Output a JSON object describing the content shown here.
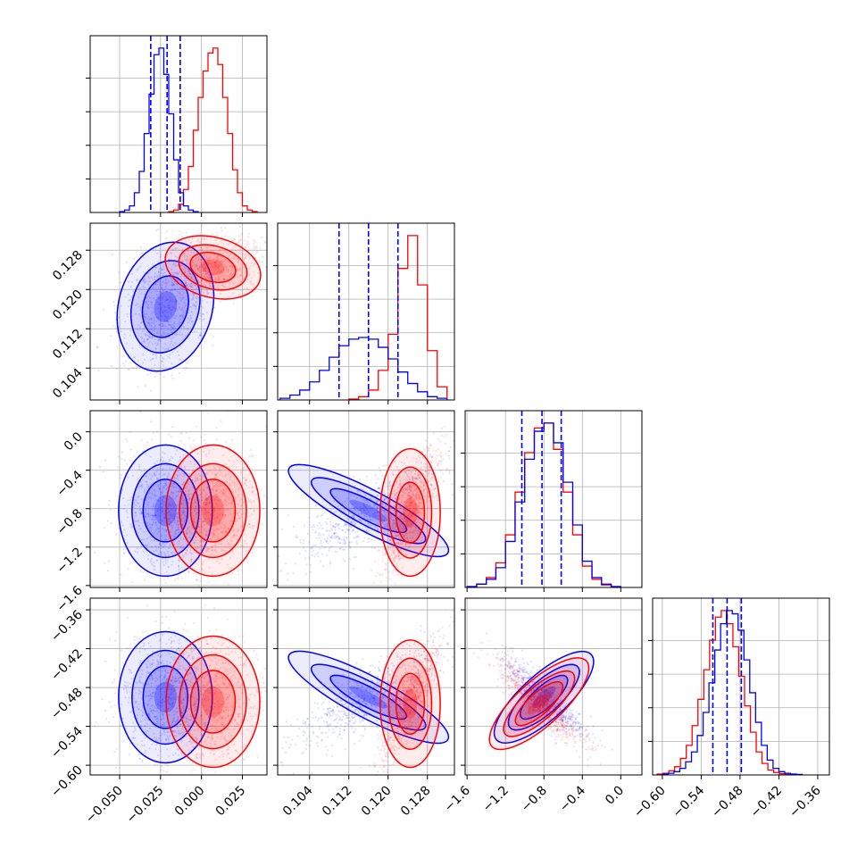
{
  "colors": {
    "a": "#0000ff",
    "b": "#ff0000",
    "grid": "#b0b0b0",
    "frame": "#000000"
  },
  "chart_data": {
    "type": "corner",
    "grid": true,
    "series": [
      {
        "color": "#0000ff",
        "marginal_quantile_lines": [
          [
            -0.031,
            -0.021,
            -0.013
          ],
          [
            0.11,
            0.116,
            0.122
          ],
          [
            -1.03,
            -0.82,
            -0.62
          ],
          [
            -0.522,
            -0.5,
            -0.478
          ]
        ]
      },
      {
        "color": "#ff0000"
      }
    ],
    "parameters": [
      {
        "range": [
          -0.068,
          0.04
        ],
        "ticks": [
          -0.05,
          -0.025,
          0.0,
          0.025
        ],
        "tick_labels": [
          "−0.050",
          "−0.025",
          "0.000",
          "0.025"
        ]
      },
      {
        "range": [
          0.0975,
          0.1335
        ],
        "ticks": [
          0.104,
          0.112,
          0.12,
          0.128
        ],
        "tick_labels": [
          "0.104",
          "0.112",
          "0.120",
          "0.128"
        ]
      },
      {
        "range": [
          -1.62,
          0.22
        ],
        "ticks": [
          -1.6,
          -1.2,
          -0.8,
          -0.4,
          0.0
        ],
        "tick_labels": [
          "−1.6",
          "−1.2",
          "−0.8",
          "−0.4",
          "0.0"
        ]
      },
      {
        "range": [
          -0.615,
          -0.342
        ],
        "ticks": [
          -0.6,
          -0.54,
          -0.48,
          -0.42,
          -0.36
        ],
        "tick_labels": [
          "−0.60",
          "−0.54",
          "−0.48",
          "−0.42",
          "−0.36"
        ]
      }
    ],
    "pairs": [
      {
        "x": 0,
        "y": 1,
        "blue_center": [
          -0.022,
          0.1165
        ],
        "red_center": [
          0.007,
          0.1245
        ]
      },
      {
        "x": 0,
        "y": 2,
        "blue_center": [
          -0.022,
          -0.82
        ],
        "red_center": [
          0.007,
          -0.82
        ]
      },
      {
        "x": 1,
        "y": 2,
        "blue_center": [
          0.116,
          -0.82
        ],
        "red_center": [
          0.1245,
          -0.84
        ]
      },
      {
        "x": 0,
        "y": 3,
        "blue_center": [
          -0.022,
          -0.495
        ],
        "red_center": [
          0.007,
          -0.502
        ]
      },
      {
        "x": 1,
        "y": 3,
        "blue_center": [
          0.116,
          -0.495
        ],
        "red_center": [
          0.1245,
          -0.505
        ]
      },
      {
        "x": 2,
        "y": 3,
        "blue_center": [
          -0.8,
          -0.495
        ],
        "red_center": [
          -0.85,
          -0.505
        ]
      }
    ],
    "marginals": [
      {
        "parameter": 0,
        "blue": {
          "edges": [
            -0.05,
            -0.047,
            -0.044,
            -0.041,
            -0.038,
            -0.035,
            -0.032,
            -0.029,
            -0.026,
            -0.023,
            -0.02,
            -0.017,
            -0.014,
            -0.011,
            -0.008,
            -0.005,
            -0.002
          ],
          "counts": [
            0.5,
            1.5,
            4,
            12,
            25,
            48,
            72,
            96,
            100,
            84,
            60,
            32,
            12,
            4,
            1.5,
            0.5
          ]
        },
        "red": {
          "edges": [
            -0.02,
            -0.017,
            -0.014,
            -0.011,
            -0.008,
            -0.005,
            -0.002,
            0.001,
            0.004,
            0.007,
            0.01,
            0.013,
            0.016,
            0.019,
            0.022,
            0.025,
            0.028,
            0.031,
            0.034
          ],
          "counts": [
            0.5,
            1.5,
            5,
            14,
            28,
            50,
            70,
            86,
            97,
            100,
            90,
            70,
            48,
            26,
            12,
            4,
            1.5,
            0.5
          ]
        }
      },
      {
        "parameter": 1,
        "blue": {
          "edges": [
            0.098,
            0.1,
            0.102,
            0.104,
            0.106,
            0.108,
            0.11,
            0.112,
            0.114,
            0.116,
            0.118,
            0.12,
            0.122,
            0.124,
            0.126,
            0.128,
            0.13,
            0.132
          ],
          "counts": [
            1,
            3,
            6,
            11,
            18,
            26,
            33,
            37,
            38,
            37,
            32,
            25,
            17,
            10,
            5,
            2,
            1
          ]
        },
        "red": {
          "edges": [
            0.112,
            0.114,
            0.116,
            0.118,
            0.12,
            0.122,
            0.124,
            0.126,
            0.128,
            0.13,
            0.132
          ],
          "counts": [
            0.5,
            2,
            6,
            18,
            40,
            80,
            100,
            70,
            30,
            8,
            1.5
          ]
        }
      },
      {
        "parameter": 2,
        "blue": {
          "edges": [
            -1.6,
            -1.5,
            -1.4,
            -1.3,
            -1.2,
            -1.1,
            -1.0,
            -0.9,
            -0.8,
            -0.7,
            -0.6,
            -0.5,
            -0.4,
            -0.3,
            -0.2,
            -0.1,
            0.0
          ],
          "counts": [
            0.5,
            2,
            5,
            12,
            28,
            52,
            78,
            95,
            100,
            88,
            64,
            38,
            16,
            6,
            2,
            0.5
          ]
        },
        "red": {
          "edges": [
            -1.6,
            -1.5,
            -1.4,
            -1.3,
            -1.2,
            -1.1,
            -1.0,
            -0.9,
            -0.8,
            -0.7,
            -0.6,
            -0.5,
            -0.4,
            -0.3,
            -0.2,
            -0.1,
            0.0
          ],
          "counts": [
            0.5,
            2,
            6,
            15,
            32,
            58,
            82,
            97,
            100,
            84,
            58,
            32,
            13,
            5,
            1.5,
            0.5
          ]
        }
      },
      {
        "parameter": 3,
        "blue": {
          "edges": [
            -0.6,
            -0.591,
            -0.582,
            -0.573,
            -0.564,
            -0.555,
            -0.546,
            -0.537,
            -0.528,
            -0.519,
            -0.51,
            -0.501,
            -0.492,
            -0.483,
            -0.474,
            -0.465,
            -0.456,
            -0.447,
            -0.438,
            -0.429,
            -0.42,
            -0.411,
            -0.402,
            -0.393,
            -0.384
          ],
          "counts": [
            0.5,
            1,
            2,
            4,
            8,
            14,
            24,
            38,
            56,
            76,
            92,
            100,
            98,
            88,
            70,
            50,
            32,
            18,
            9,
            4,
            2,
            1,
            0.5,
            0.3
          ]
        },
        "red": {
          "edges": [
            -0.608,
            -0.599,
            -0.59,
            -0.581,
            -0.572,
            -0.563,
            -0.554,
            -0.545,
            -0.536,
            -0.527,
            -0.518,
            -0.509,
            -0.5,
            -0.491,
            -0.482,
            -0.473,
            -0.464,
            -0.455,
            -0.446,
            -0.437,
            -0.428,
            -0.419,
            -0.41,
            -0.401,
            -0.392
          ],
          "counts": [
            0.5,
            1,
            2.5,
            5,
            10,
            18,
            30,
            46,
            64,
            82,
            96,
            100,
            92,
            78,
            60,
            42,
            26,
            14,
            7,
            3,
            1.5,
            0.7,
            0.4,
            0.2
          ]
        }
      }
    ]
  }
}
